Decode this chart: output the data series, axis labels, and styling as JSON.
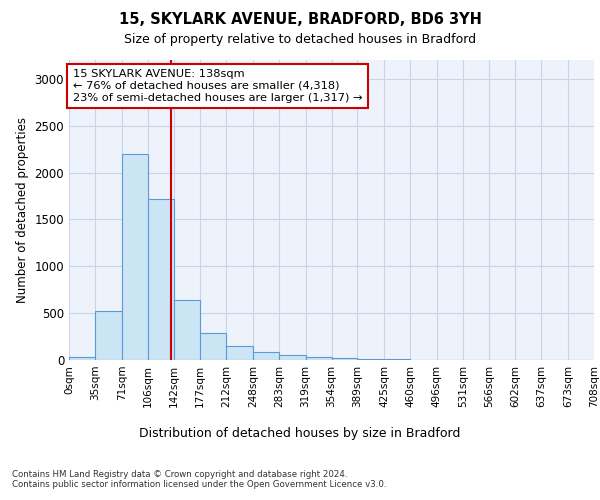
{
  "title1": "15, SKYLARK AVENUE, BRADFORD, BD6 3YH",
  "title2": "Size of property relative to detached houses in Bradford",
  "xlabel": "Distribution of detached houses by size in Bradford",
  "ylabel": "Number of detached properties",
  "footnote": "Contains HM Land Registry data © Crown copyright and database right 2024.\nContains public sector information licensed under the Open Government Licence v3.0.",
  "bin_edges": [
    0,
    35,
    71,
    106,
    142,
    177,
    212,
    248,
    283,
    319,
    354,
    389,
    425,
    460,
    496,
    531,
    566,
    602,
    637,
    673,
    708
  ],
  "bar_heights": [
    30,
    520,
    2200,
    1720,
    640,
    290,
    150,
    85,
    55,
    30,
    25,
    15,
    10,
    5,
    5,
    3,
    2,
    2,
    1,
    1
  ],
  "bar_color": "#cce5f5",
  "bar_edge_color": "#5b9bd5",
  "property_size": 138,
  "vline_color": "#cc0000",
  "annotation_text": "15 SKYLARK AVENUE: 138sqm\n← 76% of detached houses are smaller (4,318)\n23% of semi-detached houses are larger (1,317) →",
  "annotation_box_color": "#ffffff",
  "annotation_box_edge_color": "#cc0000",
  "ylim": [
    0,
    3200
  ],
  "yticks": [
    0,
    500,
    1000,
    1500,
    2000,
    2500,
    3000
  ],
  "grid_color": "#c8d4e8",
  "background_color": "#edf2fb"
}
